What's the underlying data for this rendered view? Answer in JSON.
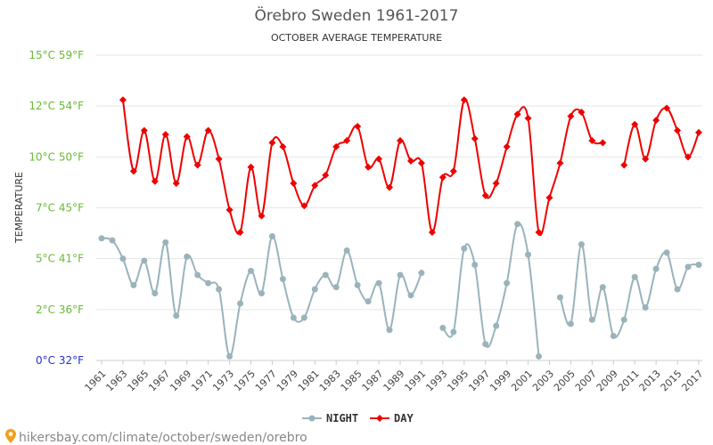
{
  "chart_data": {
    "type": "line",
    "title": "Örebro Sweden 1961-2017",
    "subtitle": "OCTOBER AVERAGE TEMPERATURE",
    "ylabel": "TEMPERATURE",
    "ylim": [
      0,
      15
    ],
    "yticks": [
      {
        "value": 0,
        "label": "0°C 32°F"
      },
      {
        "value": 2.5,
        "label": "2°C 36°F"
      },
      {
        "value": 5,
        "label": "5°C 41°F"
      },
      {
        "value": 7.5,
        "label": "7°C 45°F"
      },
      {
        "value": 10,
        "label": "10°C 50°F"
      },
      {
        "value": 12.5,
        "label": "12°C 54°F"
      },
      {
        "value": 15,
        "label": "15°C 59°F"
      }
    ],
    "ytick_colors": [
      "#2233cc",
      "#66bb33",
      "#66bb33",
      "#66bb33",
      "#66bb33",
      "#66bb33",
      "#66bb33"
    ],
    "x": [
      1961,
      1962,
      1963,
      1964,
      1965,
      1966,
      1967,
      1968,
      1969,
      1970,
      1971,
      1972,
      1973,
      1974,
      1975,
      1976,
      1977,
      1978,
      1979,
      1980,
      1981,
      1982,
      1983,
      1984,
      1985,
      1986,
      1987,
      1988,
      1989,
      1990,
      1991,
      1992,
      1993,
      1994,
      1995,
      1996,
      1997,
      1998,
      1999,
      2000,
      2001,
      2002,
      2003,
      2004,
      2005,
      2006,
      2007,
      2008,
      2009,
      2010,
      2011,
      2012,
      2013,
      2014,
      2015,
      2016,
      2017
    ],
    "xtick_labels": [
      "1961",
      "1963",
      "1965",
      "1967",
      "1969",
      "1971",
      "1973",
      "1975",
      "1977",
      "1979",
      "1981",
      "1983",
      "1985",
      "1987",
      "1989",
      "1991",
      "1993",
      "1995",
      "1997",
      "1999",
      "2001",
      "2003",
      "2005",
      "2007",
      "2009",
      "2011",
      "2013",
      "2015",
      "2017"
    ],
    "grid": true,
    "legend_position": "bottom-center",
    "series": [
      {
        "name": "NIGHT",
        "color": "#9ab3bc",
        "values": [
          6.0,
          5.9,
          5.0,
          3.7,
          4.9,
          3.3,
          5.8,
          2.2,
          5.1,
          4.2,
          3.8,
          3.5,
          0.2,
          2.8,
          4.4,
          3.3,
          6.1,
          4.0,
          2.1,
          2.1,
          3.5,
          4.2,
          3.6,
          5.4,
          3.7,
          2.9,
          3.8,
          1.5,
          4.2,
          3.2,
          4.3,
          null,
          1.6,
          1.4,
          5.5,
          4.7,
          0.8,
          1.7,
          3.8,
          6.7,
          5.2,
          0.2,
          null,
          3.1,
          1.8,
          5.7,
          2.0,
          3.6,
          1.2,
          2.0,
          4.1,
          2.6,
          4.5,
          5.3,
          3.5,
          4.6,
          4.7
        ]
      },
      {
        "name": "DAY",
        "color": "#ee0000",
        "values": [
          null,
          null,
          12.8,
          9.3,
          11.3,
          8.8,
          11.1,
          8.7,
          11.0,
          9.6,
          11.3,
          9.9,
          7.4,
          6.3,
          9.5,
          7.1,
          10.7,
          10.5,
          8.7,
          7.6,
          8.6,
          9.1,
          10.5,
          10.8,
          11.5,
          9.5,
          9.9,
          8.5,
          10.8,
          9.8,
          9.7,
          6.3,
          9.0,
          9.3,
          12.8,
          10.9,
          8.1,
          8.7,
          10.5,
          12.1,
          11.9,
          6.3,
          8.0,
          9.7,
          12.0,
          12.2,
          10.8,
          10.7,
          null,
          9.6,
          11.6,
          9.9,
          11.8,
          12.4,
          11.3,
          10.0,
          11.2
        ]
      }
    ]
  },
  "source": {
    "text": "hikersbay.com/climate/october/sweden/orebro"
  }
}
